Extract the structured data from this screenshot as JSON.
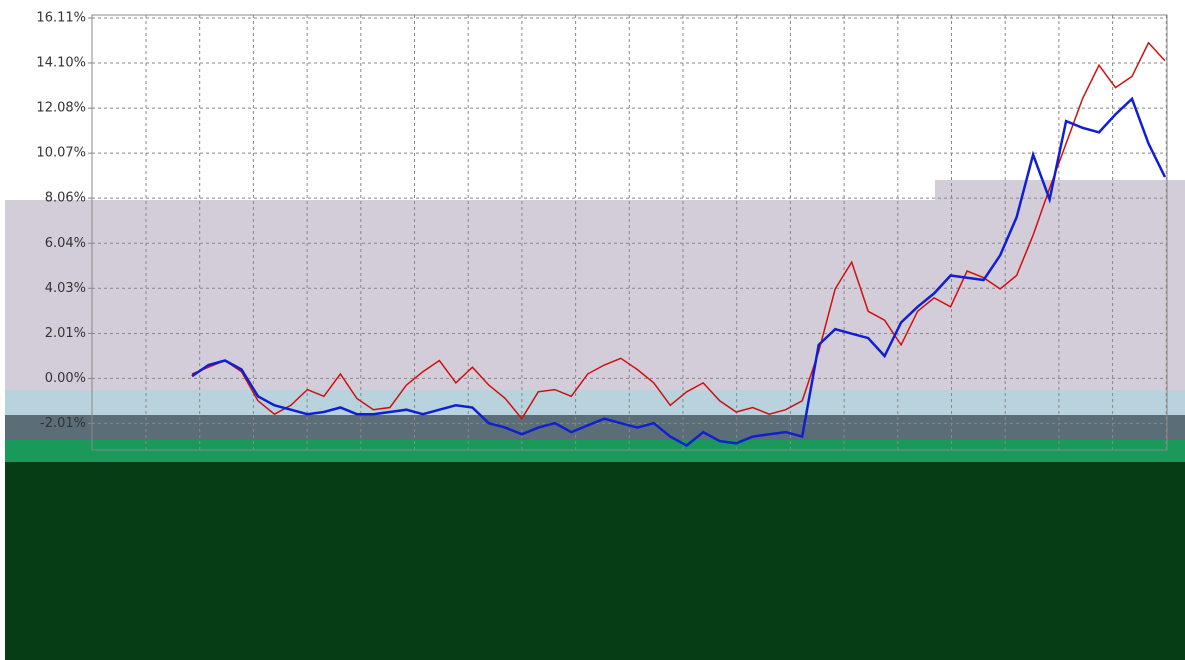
{
  "chart_data": {
    "type": "line",
    "ylim": [
      -3.2,
      16.11
    ],
    "yticks": [
      {
        "value": 16.11,
        "label": "16.11%"
      },
      {
        "value": 14.1,
        "label": "14.10%"
      },
      {
        "value": 12.08,
        "label": "12.08%"
      },
      {
        "value": 10.07,
        "label": "10.07%"
      },
      {
        "value": 8.06,
        "label": "8.06%"
      },
      {
        "value": 6.04,
        "label": "6.04%"
      },
      {
        "value": 4.03,
        "label": "4.03%"
      },
      {
        "value": 2.01,
        "label": "2.01%"
      },
      {
        "value": 0,
        "label": "0.00%"
      },
      {
        "value": -2.01,
        "label": "-2.01%"
      }
    ],
    "grid": true,
    "series": [
      {
        "color": "#d01010",
        "values": [
          0.2,
          0.5,
          0.8,
          0.3,
          -1.0,
          -1.6,
          -1.2,
          -0.5,
          -0.8,
          0.2,
          -0.9,
          -1.4,
          -1.3,
          -0.3,
          0.3,
          0.8,
          -0.2,
          0.5,
          -0.3,
          -0.9,
          -1.8,
          -0.6,
          -0.5,
          -0.8,
          0.2,
          0.6,
          0.9,
          0.4,
          -0.2,
          -1.2,
          -0.6,
          -0.2,
          -1.0,
          -1.5,
          -1.3,
          -1.6,
          -1.4,
          -1.0,
          1.2,
          4.0,
          5.2,
          3.0,
          2.6,
          1.5,
          3.0,
          3.6,
          3.2,
          4.8,
          4.5,
          4.0,
          4.6,
          6.4,
          8.5,
          10.5,
          12.5,
          14.0,
          13.0,
          13.5,
          15.0,
          14.2
        ]
      },
      {
        "color": "#1020d0",
        "values": [
          0.1,
          0.6,
          0.8,
          0.4,
          -0.8,
          -1.2,
          -1.4,
          -1.6,
          -1.5,
          -1.3,
          -1.6,
          -1.6,
          -1.5,
          -1.4,
          -1.6,
          -1.4,
          -1.2,
          -1.3,
          -2.0,
          -2.2,
          -2.5,
          -2.2,
          -2.0,
          -2.4,
          -2.1,
          -1.8,
          -2.0,
          -2.2,
          -2.0,
          -2.6,
          -3.0,
          -2.4,
          -2.8,
          -2.9,
          -2.6,
          -2.5,
          -2.4,
          -2.6,
          1.5,
          2.2,
          2.0,
          1.8,
          1.0,
          2.5,
          3.2,
          3.8,
          4.6,
          4.5,
          4.4,
          5.5,
          7.2,
          10.0,
          8.0,
          11.5,
          11.2,
          11.0,
          11.8,
          12.5,
          10.5,
          9.0
        ]
      }
    ]
  }
}
